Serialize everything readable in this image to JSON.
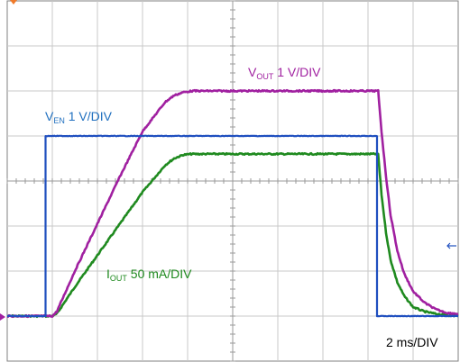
{
  "chart_data": {
    "type": "line",
    "title": "",
    "xlabel": "",
    "ylabel": "",
    "time_scale": "2 ms/DIV",
    "x_unit": "ms",
    "xlim": [
      -2,
      18
    ],
    "grid": true,
    "grid_divisions": {
      "x": 10,
      "y": 8
    },
    "series": [
      {
        "name_main": "V",
        "name_sub": "EN",
        "scale": "1 V/DIV",
        "color": "#1f4fbf",
        "x": [
          -2,
          -0.3,
          -0.3,
          14.4,
          14.4,
          18
        ],
        "y_div": [
          0,
          0,
          4,
          4,
          0,
          0
        ]
      },
      {
        "name_main": "V",
        "name_sub": "OUT",
        "scale": "1 V/DIV",
        "color": "#a020a0",
        "x": [
          -2,
          0.0,
          0.2,
          1.0,
          2.0,
          3.0,
          4.0,
          5.0,
          5.4,
          5.8,
          6.2,
          7.0,
          8.0,
          10.0,
          12.0,
          14.0,
          14.45,
          14.6,
          14.8,
          15.0,
          15.3,
          15.6,
          16.0,
          16.5,
          17.0,
          17.5,
          18
        ],
        "y_div": [
          0,
          0,
          0.1,
          1.0,
          2.05,
          3.1,
          4.1,
          4.75,
          4.9,
          4.97,
          5.0,
          5.0,
          5.0,
          5.0,
          5.0,
          5.0,
          5.0,
          4.1,
          3.1,
          2.25,
          1.45,
          0.95,
          0.55,
          0.3,
          0.15,
          0.07,
          0.05
        ]
      },
      {
        "name_main": "I",
        "name_sub": "OUT",
        "scale": "50 mA/DIV",
        "color": "#1f8a1f",
        "x": [
          -2,
          0.0,
          0.2,
          1.0,
          2.0,
          3.0,
          4.0,
          5.0,
          5.4,
          5.8,
          6.2,
          7.0,
          8.0,
          10.0,
          12.0,
          14.0,
          14.45,
          14.6,
          14.8,
          15.0,
          15.3,
          15.6,
          16.0,
          16.5,
          17.0,
          17.5,
          18
        ],
        "y_div": [
          0,
          0,
          0.05,
          0.65,
          1.35,
          2.05,
          2.75,
          3.35,
          3.5,
          3.58,
          3.6,
          3.6,
          3.6,
          3.6,
          3.6,
          3.6,
          3.6,
          2.7,
          1.85,
          1.25,
          0.75,
          0.45,
          0.2,
          0.1,
          0.05,
          0.02,
          0.0
        ]
      }
    ]
  }
}
